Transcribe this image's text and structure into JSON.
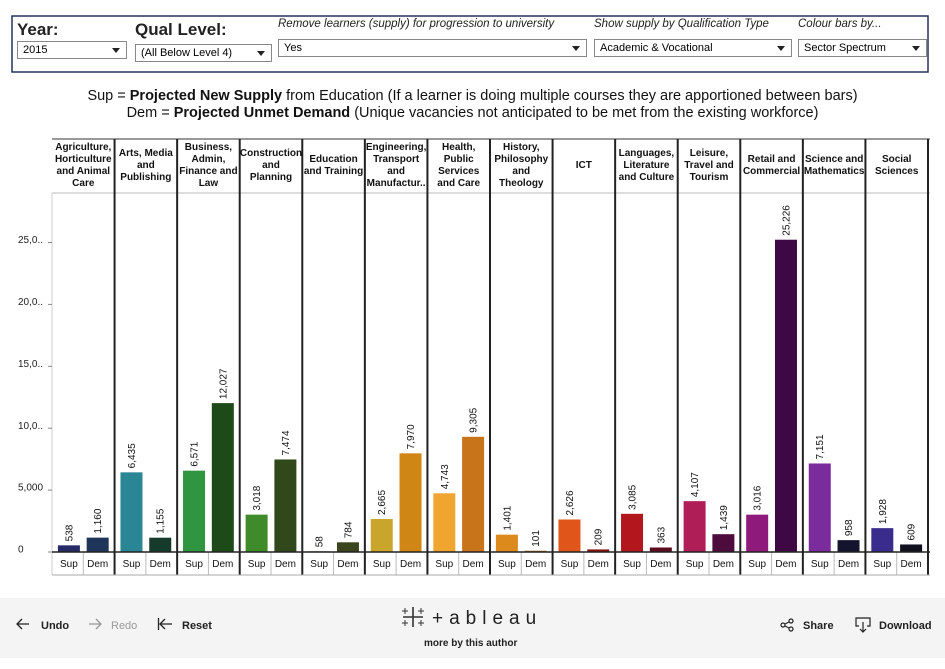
{
  "filters": [
    {
      "label": "Year:",
      "value": "2015"
    },
    {
      "label": "Qual Level:",
      "value": "(All Below Level 4)"
    },
    {
      "label": "Remove learners (supply) for progression to university",
      "value": "Yes"
    },
    {
      "label": "Show supply by Qualification Type",
      "value": "Academic & Vocational"
    },
    {
      "label": "Colour bars by...",
      "value": "Sector Spectrum"
    }
  ],
  "chart_data": {
    "type": "bar",
    "subtitle_lines": [
      [
        "Sup = ",
        "Projected New Supply",
        " from Education (If a learner is doing multiple courses they are apportioned between bars)"
      ],
      [
        "Dem = ",
        "Projected Unmet Demand",
        " (Unique vacancies not anticipated to be met from the existing workforce)"
      ]
    ],
    "categories": [
      "Agriculture, Horticulture and Animal Care",
      "Arts, Media and Publishing",
      "Business, Admin, Finance and Law",
      "Construction and Planning",
      "Education and Training",
      "Engineering, Transport and Manufactur..",
      "Health, Public Services and Care",
      "History, Philosophy and Theology",
      "ICT",
      "Languages, Literature and Culture",
      "Leisure, Travel and Tourism",
      "Retail and Commercial",
      "Science and Mathematics",
      "Social Sciences"
    ],
    "series": [
      {
        "name": "Sup",
        "colors": [
          "#262a66",
          "#2a8595",
          "#2f9540",
          "#3f8a2a",
          "#6a8a2a",
          "#c9a52b",
          "#f0a530",
          "#dd8a1c",
          "#e0561a",
          "#b3161c",
          "#b01e58",
          "#8e1a7c",
          "#7a2c9c",
          "#3a2c8c"
        ],
        "values": [
          538,
          6435,
          6571,
          3018,
          58,
          2665,
          4743,
          1401,
          2626,
          3085,
          4107,
          3016,
          7151,
          1928
        ],
        "value_labels": [
          "538",
          "6,435",
          "6,571",
          "3,018",
          "58",
          "2,665",
          "4,743",
          "1,401",
          "2,626",
          "3,085",
          "4,107",
          "3,016",
          "7,151",
          "1,928"
        ]
      },
      {
        "name": "Dem",
        "colors": [
          "#1e3458",
          "#163a2c",
          "#1d4a18",
          "#30481a",
          "#3a4520",
          "#d08614",
          "#c8741a",
          "#a86012",
          "#8a1010",
          "#5c0a1e",
          "#4e0c3c",
          "#3e0844",
          "#14142e",
          "#10101e"
        ],
        "values": [
          1160,
          1155,
          12027,
          7474,
          784,
          7970,
          9305,
          101,
          209,
          363,
          1439,
          25226,
          958,
          609
        ],
        "value_labels": [
          "1,160",
          "1,155",
          "12,027",
          "7,474",
          "784",
          "7,970",
          "9,305",
          "101",
          "209",
          "363",
          "1,439",
          "25,226",
          "958",
          "609"
        ]
      }
    ],
    "ylim": [
      0,
      29000
    ],
    "yticks": [
      0,
      {
        "value": 5000,
        "label": "5,000"
      },
      {
        "value": 10000,
        "label": "10,0.."
      },
      {
        "value": 15000,
        "label": "15,0.."
      },
      {
        "value": 20000,
        "label": "20,0.."
      },
      {
        "value": 25000,
        "label": "25,0.."
      }
    ],
    "grid": false
  },
  "footer": {
    "undo": "Undo",
    "redo": "Redo",
    "reset": "Reset",
    "brand": "+ableau",
    "author": "more by this author",
    "share": "Share",
    "download": "Download"
  }
}
